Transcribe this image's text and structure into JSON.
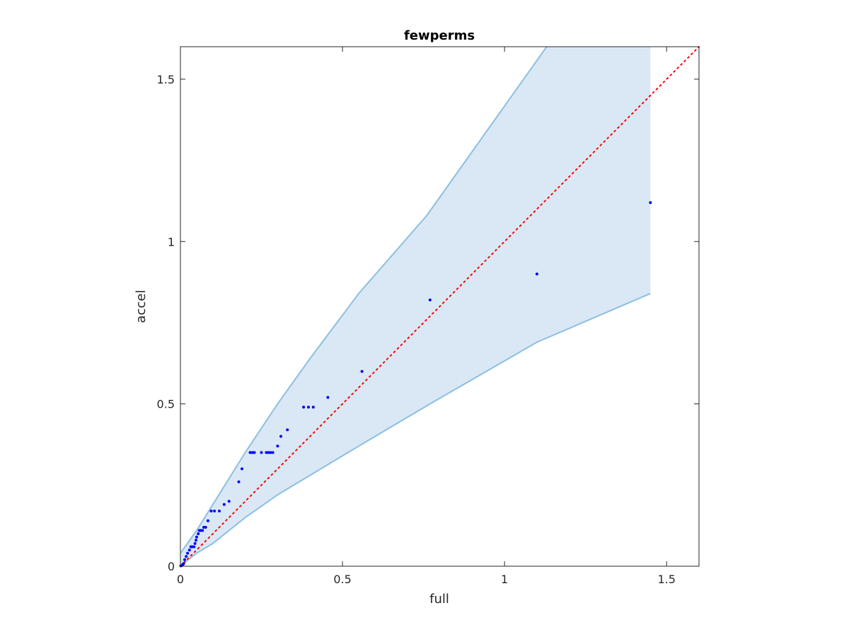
{
  "chart_data": {
    "type": "scatter",
    "title": "fewperms",
    "xlabel": "full",
    "ylabel": "accel",
    "xlim": [
      0,
      1.6
    ],
    "ylim": [
      0,
      1.6
    ],
    "x_ticks": [
      0,
      0.5,
      1,
      1.5
    ],
    "x_tick_labels": [
      "0",
      "0.5",
      "1",
      "1.5"
    ],
    "y_ticks": [
      0,
      0.5,
      1,
      1.5
    ],
    "y_tick_labels": [
      "0",
      "0.5",
      "1",
      "1.5"
    ],
    "grid": false,
    "band": {
      "upper": [
        [
          0,
          0.04
        ],
        [
          0.05,
          0.11
        ],
        [
          0.1,
          0.19
        ],
        [
          0.2,
          0.35
        ],
        [
          0.3,
          0.5
        ],
        [
          0.4,
          0.64
        ],
        [
          0.55,
          0.84
        ],
        [
          0.76,
          1.08
        ],
        [
          1.13,
          1.6
        ],
        [
          1.45,
          1.6
        ]
      ],
      "lower": [
        [
          0,
          0
        ],
        [
          0.05,
          0.04
        ],
        [
          0.1,
          0.07
        ],
        [
          0.2,
          0.15
        ],
        [
          0.3,
          0.22
        ],
        [
          0.4,
          0.28
        ],
        [
          0.55,
          0.37
        ],
        [
          0.77,
          0.5
        ],
        [
          1.1,
          0.69
        ],
        [
          1.45,
          0.84
        ]
      ],
      "fill_color": "#d9e8f4",
      "edge_color": "#8cbfe2"
    },
    "reference_line": {
      "x": [
        0,
        1.6
      ],
      "y": [
        0,
        1.6
      ],
      "style": "dotted",
      "color": "#ff0000"
    },
    "point_color": "#0000ff",
    "points": [
      [
        0.001,
        0.001
      ],
      [
        0.003,
        0.002
      ],
      [
        0.006,
        0.004
      ],
      [
        0.008,
        0.006
      ],
      [
        0.01,
        0.008
      ],
      [
        0.013,
        0.02
      ],
      [
        0.018,
        0.03
      ],
      [
        0.022,
        0.04
      ],
      [
        0.028,
        0.05
      ],
      [
        0.032,
        0.06
      ],
      [
        0.036,
        0.06
      ],
      [
        0.042,
        0.06
      ],
      [
        0.045,
        0.07
      ],
      [
        0.048,
        0.08
      ],
      [
        0.05,
        0.09
      ],
      [
        0.055,
        0.1
      ],
      [
        0.058,
        0.11
      ],
      [
        0.062,
        0.11
      ],
      [
        0.068,
        0.11
      ],
      [
        0.072,
        0.12
      ],
      [
        0.078,
        0.12
      ],
      [
        0.085,
        0.14
      ],
      [
        0.095,
        0.17
      ],
      [
        0.105,
        0.17
      ],
      [
        0.12,
        0.17
      ],
      [
        0.135,
        0.19
      ],
      [
        0.15,
        0.2
      ],
      [
        0.18,
        0.26
      ],
      [
        0.19,
        0.3
      ],
      [
        0.215,
        0.35
      ],
      [
        0.222,
        0.35
      ],
      [
        0.228,
        0.35
      ],
      [
        0.25,
        0.35
      ],
      [
        0.265,
        0.35
      ],
      [
        0.272,
        0.35
      ],
      [
        0.278,
        0.35
      ],
      [
        0.285,
        0.35
      ],
      [
        0.3,
        0.37
      ],
      [
        0.31,
        0.4
      ],
      [
        0.33,
        0.42
      ],
      [
        0.38,
        0.49
      ],
      [
        0.395,
        0.49
      ],
      [
        0.41,
        0.49
      ],
      [
        0.455,
        0.52
      ],
      [
        0.56,
        0.6
      ],
      [
        0.77,
        0.82
      ],
      [
        1.1,
        0.9
      ],
      [
        1.45,
        1.12
      ]
    ]
  }
}
